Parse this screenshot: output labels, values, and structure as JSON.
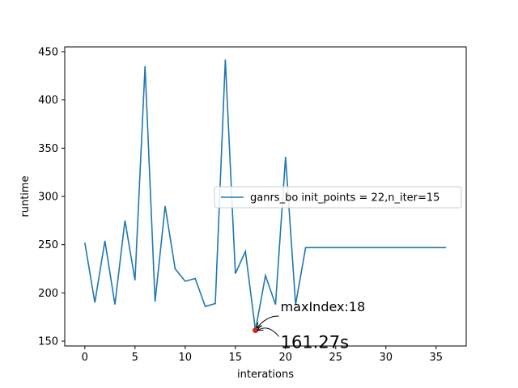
{
  "chart_data": {
    "type": "line",
    "xlabel": "interations",
    "ylabel": "runtime",
    "xlim": [
      -2,
      38
    ],
    "ylim": [
      145,
      455
    ],
    "xticks": [
      0,
      5,
      10,
      15,
      20,
      25,
      30,
      35
    ],
    "yticks": [
      150,
      200,
      250,
      300,
      350,
      400,
      450
    ],
    "legend_position": "center-right",
    "grid": false,
    "series": [
      {
        "name": "ganrs_bo  init_points = 22,n_iter=15",
        "color": "#1f77b4",
        "x": [
          0,
          1,
          2,
          3,
          4,
          5,
          6,
          7,
          8,
          9,
          10,
          11,
          12,
          13,
          14,
          15,
          16,
          17,
          18,
          19,
          20,
          21,
          22,
          23,
          24,
          25,
          26,
          27,
          28,
          29,
          30,
          31,
          32,
          33,
          34,
          35,
          36
        ],
        "y": [
          252,
          190,
          254,
          188,
          275,
          213,
          435,
          191,
          290,
          225,
          212,
          215,
          186,
          189,
          442,
          220,
          243,
          161.27,
          218,
          188,
          341,
          188,
          247,
          247,
          247,
          247,
          247,
          247,
          247,
          247,
          247,
          247,
          247,
          247,
          247,
          247,
          247
        ]
      }
    ],
    "highlight": {
      "x": 17,
      "y": 161.27,
      "color": "#d62728"
    },
    "annotations": [
      {
        "text": "maxIndex:18",
        "x": 19.5,
        "y": 181
      },
      {
        "text": "161.27s",
        "x": 19.5,
        "y": 143
      }
    ]
  }
}
